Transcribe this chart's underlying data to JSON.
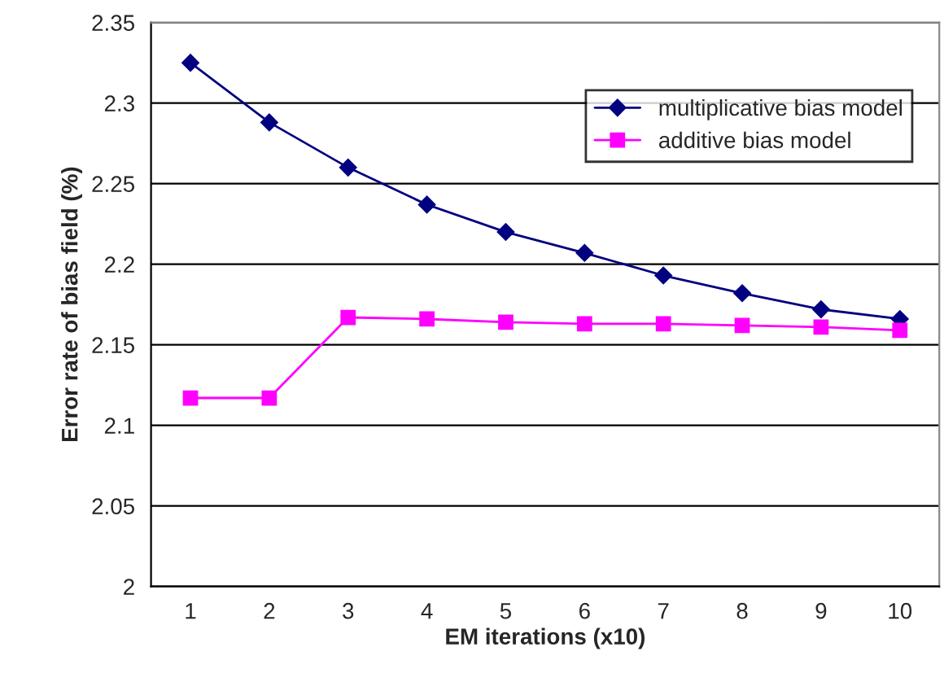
{
  "chart_data": {
    "type": "line",
    "xlabel": "EM iterations (x10)",
    "ylabel": "Error rate of bias field (%)",
    "categories": [
      "1",
      "2",
      "3",
      "4",
      "5",
      "6",
      "7",
      "8",
      "9",
      "10"
    ],
    "series": [
      {
        "name": "multiplicative bias model",
        "color": "#000080",
        "marker": "diamond",
        "values": [
          2.325,
          2.288,
          2.26,
          2.237,
          2.22,
          2.207,
          2.193,
          2.182,
          2.172,
          2.166
        ]
      },
      {
        "name": "additive bias model",
        "color": "#ff00ff",
        "marker": "square",
        "values": [
          2.117,
          2.117,
          2.167,
          2.166,
          2.164,
          2.163,
          2.163,
          2.162,
          2.161,
          2.159
        ]
      }
    ],
    "ylim": [
      2,
      2.35
    ],
    "yticks": [
      2,
      2.05,
      2.1,
      2.15,
      2.2,
      2.25,
      2.3,
      2.35
    ],
    "grid": "y",
    "legend": "top right",
    "line_style": "solid"
  }
}
